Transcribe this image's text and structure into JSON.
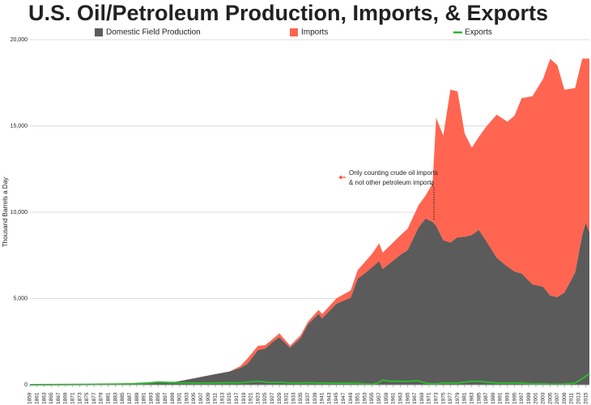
{
  "chart_data": {
    "type": "stacked-area",
    "title": "U.S. Oil/Petroleum Production, Imports, & Exports",
    "ylabel": "Thousand Barrels a Day",
    "annotation": [
      "Only counting crude oil imports",
      "& not other petroleum  imports"
    ],
    "x": [
      1859,
      1865,
      1870,
      1875,
      1880,
      1885,
      1890,
      1895,
      1900,
      1905,
      1910,
      1915,
      1918,
      1920,
      1923,
      1925,
      1927,
      1929,
      1932,
      1935,
      1937,
      1940,
      1941,
      1945,
      1949,
      1951,
      1953,
      1955,
      1957,
      1958,
      1960,
      1963,
      1965,
      1968,
      1970,
      1972,
      1973,
      1975,
      1977,
      1979,
      1981,
      1983,
      1985,
      1987,
      1990,
      1993,
      1995,
      1997,
      2000,
      2003,
      2005,
      2007,
      2009,
      2012,
      2014,
      2015,
      2016
    ],
    "series": [
      {
        "name": "Domestic Field Production",
        "color": "#5b5b5b",
        "stacked": true,
        "values": [
          0,
          7,
          14,
          30,
          72,
          60,
          126,
          145,
          174,
          369,
          574,
          770,
          975,
          1210,
          2010,
          2097,
          2469,
          2760,
          2145,
          2730,
          3500,
          4107,
          3850,
          4695,
          5046,
          6160,
          6460,
          6807,
          7170,
          6710,
          7035,
          7540,
          7804,
          9096,
          9637,
          9441,
          9208,
          8375,
          8245,
          8552,
          8572,
          8688,
          8971,
          8349,
          7355,
          6847,
          6560,
          6452,
          5822,
          5681,
          5178,
          5077,
          5353,
          6500,
          8700,
          9400,
          8850
        ]
      },
      {
        "name": "Imports",
        "color": "#ff6550",
        "stacked": true,
        "values": [
          0,
          0,
          0,
          0,
          0,
          0,
          0,
          0,
          0,
          0,
          0,
          0,
          100,
          300,
          250,
          200,
          160,
          220,
          120,
          150,
          150,
          230,
          250,
          310,
          420,
          490,
          650,
          780,
          1020,
          950,
          1020,
          1130,
          1240,
          1290,
          1320,
          2220,
          6260,
          6060,
          8860,
          8450,
          5990,
          5050,
          5400,
          6600,
          8300,
          8400,
          9040,
          10160,
          10900,
          12040,
          13710,
          13450,
          11750,
          10700,
          10200,
          9500,
          10050
        ]
      },
      {
        "name": "Exports",
        "color": "#2eb82e",
        "stacked": false,
        "values": [
          0,
          5,
          10,
          20,
          30,
          40,
          60,
          150,
          120,
          100,
          100,
          120,
          110,
          150,
          200,
          150,
          130,
          140,
          100,
          100,
          120,
          100,
          100,
          90,
          90,
          80,
          50,
          30,
          130,
          280,
          200,
          200,
          200,
          230,
          100,
          60,
          60,
          100,
          100,
          100,
          150,
          200,
          200,
          150,
          100,
          100,
          100,
          100,
          50,
          50,
          30,
          30,
          40,
          100,
          350,
          500,
          650
        ]
      }
    ],
    "xlim": [
      1859,
      2016
    ],
    "xticks": [
      1859,
      1861,
      1863,
      1865,
      1867,
      1869,
      1871,
      1873,
      1875,
      1877,
      1879,
      1881,
      1883,
      1885,
      1887,
      1889,
      1891,
      1893,
      1895,
      1897,
      1899,
      1901,
      1903,
      1905,
      1907,
      1909,
      1911,
      1913,
      1915,
      1917,
      1919,
      1921,
      1923,
      1925,
      1927,
      1929,
      1931,
      1933,
      1935,
      1937,
      1939,
      1941,
      1943,
      1945,
      1947,
      1949,
      1951,
      1953,
      1955,
      1957,
      1959,
      1961,
      1963,
      1965,
      1967,
      1969,
      1971,
      1973,
      1975,
      1977,
      1979,
      1981,
      1983,
      1985,
      1987,
      1989,
      1991,
      1993,
      1995,
      1997,
      1999,
      2001,
      2003,
      2005,
      2007,
      2009,
      2011,
      2013,
      2015
    ],
    "ylim": [
      0,
      20000
    ],
    "yticks": [
      0,
      {
        "value": 5000,
        "label": "5,000"
      },
      {
        "value": 10000,
        "label": "10,000"
      },
      {
        "value": 15000,
        "label": "15,000"
      },
      {
        "value": 20000,
        "label": "20,000"
      }
    ],
    "grid": true
  }
}
